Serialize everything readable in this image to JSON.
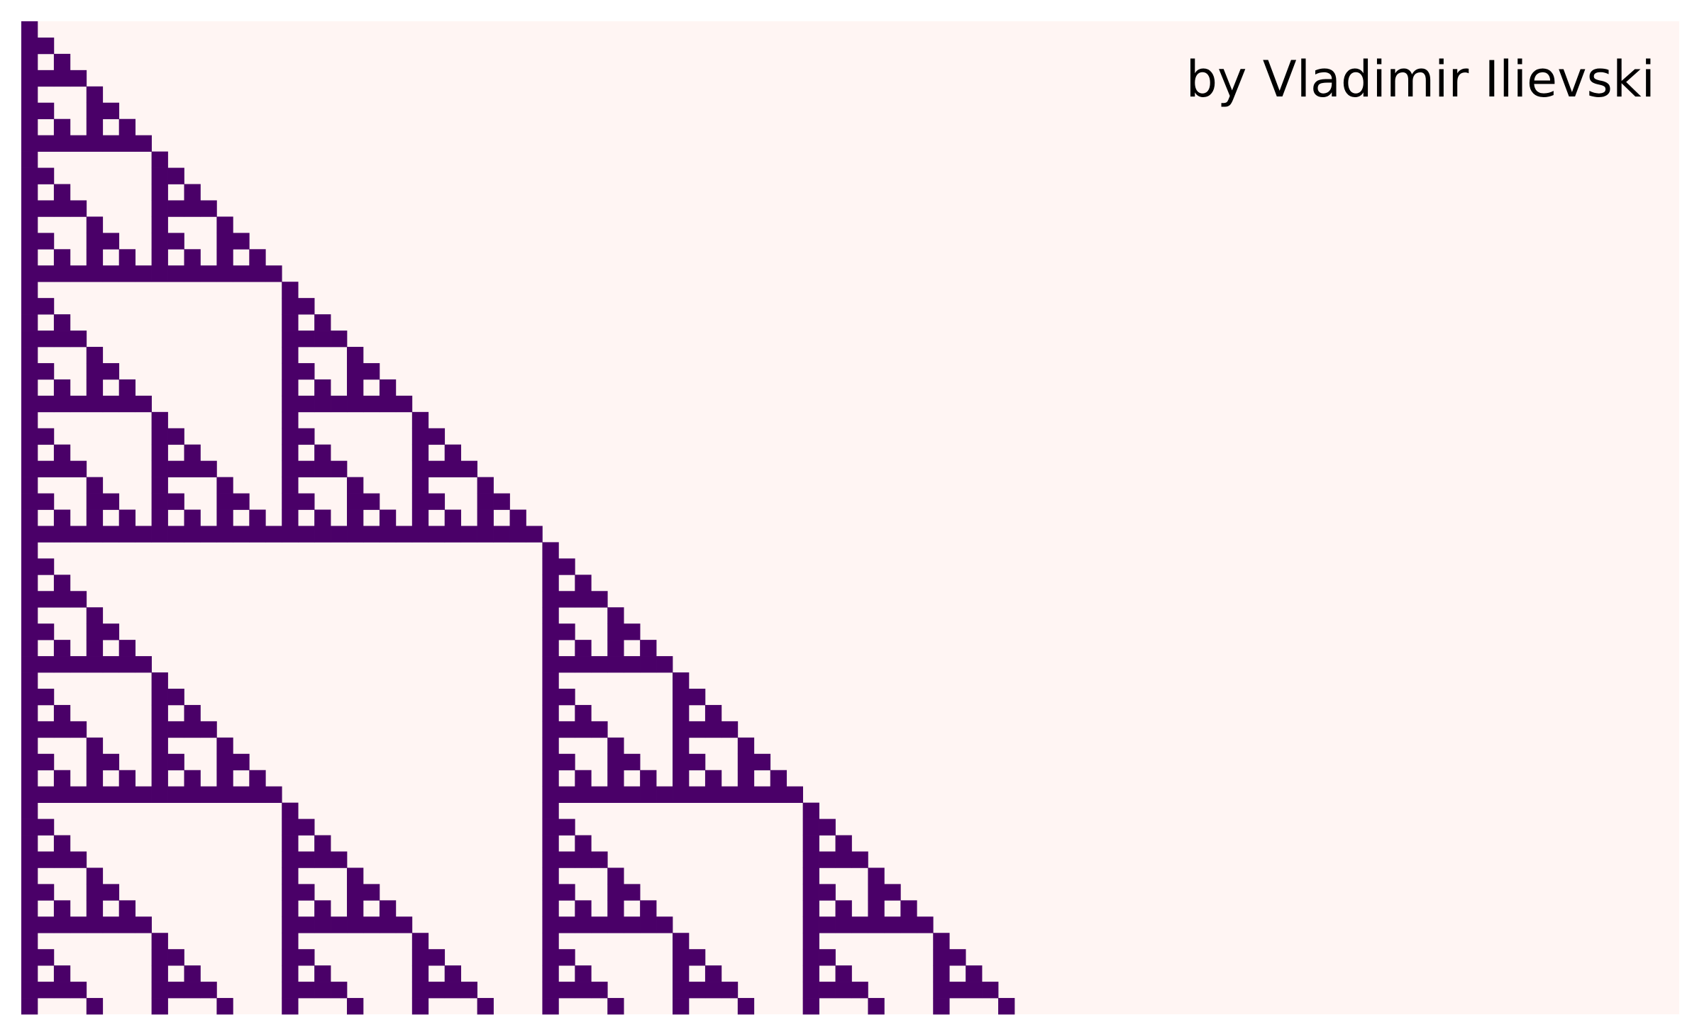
{
  "credit": "by Vladimir Ilievski",
  "colors": {
    "background": "#fff5f3",
    "cell": "#4a0068",
    "text": "#000000"
  },
  "pattern": {
    "rule": "sierpinski-pascal-mod-2",
    "rows": 61
  }
}
